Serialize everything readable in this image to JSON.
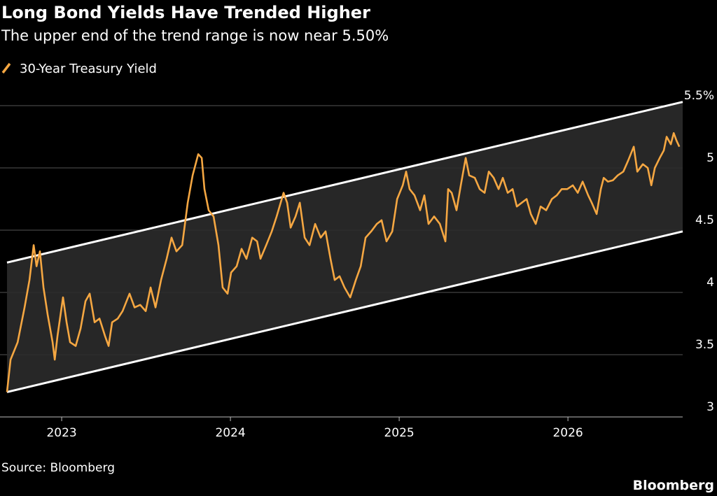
{
  "chart_data": {
    "type": "line",
    "title": "Long Bond Yields Have Trended Higher",
    "subtitle": "The upper end of the trend range is now near 5.50%",
    "source": "Source: Bloomberg",
    "brand": "Bloomberg",
    "x": [
      2022.676,
      2022.697,
      2022.739,
      2022.78,
      2022.809,
      2022.834,
      2022.851,
      2022.871,
      2022.892,
      2022.917,
      2022.946,
      2022.959,
      2022.975,
      2023.008,
      2023.029,
      2023.05,
      2023.083,
      2023.112,
      2023.141,
      2023.166,
      2023.195,
      2023.224,
      2023.257,
      2023.278,
      2023.299,
      2023.332,
      2023.361,
      2023.402,
      2023.432,
      2023.465,
      2023.498,
      2023.527,
      2023.556,
      2023.589,
      2023.622,
      2023.651,
      2023.68,
      2023.714,
      2023.747,
      2023.776,
      2023.809,
      2023.83,
      2023.846,
      2023.871,
      2023.9,
      2023.929,
      2023.954,
      2023.983,
      2024.004,
      2024.037,
      2024.066,
      2024.095,
      2024.129,
      2024.158,
      2024.178,
      2024.212,
      2024.245,
      2024.274,
      2024.315,
      2024.336,
      2024.357,
      2024.386,
      2024.411,
      2024.44,
      2024.469,
      2024.502,
      2024.535,
      2024.564,
      2024.593,
      2024.618,
      2024.647,
      2024.676,
      2024.71,
      2024.743,
      2024.772,
      2024.801,
      2024.834,
      2024.867,
      2024.896,
      2024.925,
      2024.959,
      2024.988,
      2025.021,
      2025.041,
      2025.062,
      2025.091,
      2025.124,
      2025.149,
      2025.174,
      2025.207,
      2025.241,
      2025.274,
      2025.29,
      2025.311,
      2025.34,
      2025.365,
      2025.394,
      2025.415,
      2025.448,
      2025.477,
      2025.506,
      2025.531,
      2025.56,
      2025.589,
      2025.614,
      2025.643,
      2025.672,
      2025.697,
      2025.726,
      2025.755,
      2025.78,
      2025.809,
      2025.838,
      2025.871,
      2025.905,
      2025.934,
      2025.963,
      2025.996,
      2026.029,
      2026.058,
      2026.087,
      2026.12,
      2026.141,
      2026.17,
      2026.195,
      2026.212,
      2026.237,
      2026.266,
      2026.295,
      2026.328,
      2026.357,
      2026.39,
      2026.411,
      2026.444,
      2026.473,
      2026.494,
      2026.515,
      2026.544,
      2026.568,
      2026.585,
      2026.61,
      2026.627,
      2026.643,
      2026.66
    ],
    "series": [
      {
        "name": "30-Year Treasury Yield",
        "color": "#f5a742",
        "values": [
          3.2,
          3.46,
          3.6,
          3.88,
          4.1,
          4.38,
          4.21,
          4.33,
          4.04,
          3.82,
          3.6,
          3.46,
          3.65,
          3.96,
          3.76,
          3.6,
          3.57,
          3.71,
          3.93,
          3.99,
          3.76,
          3.79,
          3.65,
          3.57,
          3.76,
          3.79,
          3.85,
          3.99,
          3.88,
          3.9,
          3.85,
          4.04,
          3.88,
          4.1,
          4.27,
          4.44,
          4.33,
          4.38,
          4.72,
          4.94,
          5.11,
          5.08,
          4.83,
          4.66,
          4.61,
          4.38,
          4.04,
          3.99,
          4.16,
          4.21,
          4.35,
          4.27,
          4.44,
          4.41,
          4.27,
          4.38,
          4.49,
          4.61,
          4.8,
          4.72,
          4.52,
          4.61,
          4.72,
          4.44,
          4.38,
          4.55,
          4.44,
          4.49,
          4.27,
          4.1,
          4.13,
          4.04,
          3.96,
          4.1,
          4.21,
          4.44,
          4.49,
          4.55,
          4.58,
          4.41,
          4.49,
          4.75,
          4.86,
          4.97,
          4.83,
          4.78,
          4.66,
          4.78,
          4.55,
          4.61,
          4.55,
          4.41,
          4.83,
          4.8,
          4.66,
          4.86,
          5.08,
          4.94,
          4.92,
          4.83,
          4.8,
          4.97,
          4.92,
          4.83,
          4.92,
          4.8,
          4.83,
          4.69,
          4.72,
          4.75,
          4.63,
          4.55,
          4.69,
          4.66,
          4.75,
          4.78,
          4.83,
          4.83,
          4.86,
          4.8,
          4.89,
          4.78,
          4.72,
          4.63,
          4.83,
          4.92,
          4.89,
          4.9,
          4.94,
          4.97,
          5.06,
          5.17,
          4.97,
          5.03,
          5.0,
          4.86,
          5.0,
          5.08,
          5.14,
          5.25,
          5.19,
          5.28,
          5.22,
          5.17
        ]
      }
    ],
    "channel": {
      "x": [
        2022.676,
        2026.68
      ],
      "upper": [
        4.24,
        5.53
      ],
      "lower": [
        3.2,
        4.49
      ],
      "color": "#ffffff",
      "fill": "#2b2b2b"
    },
    "xlim": [
      2022.676,
      2026.68
    ],
    "xticks": [
      2023,
      2024,
      2025,
      2026
    ],
    "ylim": [
      3.0,
      5.5
    ],
    "yticks": [
      3.0,
      3.5,
      4.0,
      4.5,
      5.0,
      {
        "value": 5.5,
        "label": "5.5%"
      }
    ],
    "grid": true
  }
}
